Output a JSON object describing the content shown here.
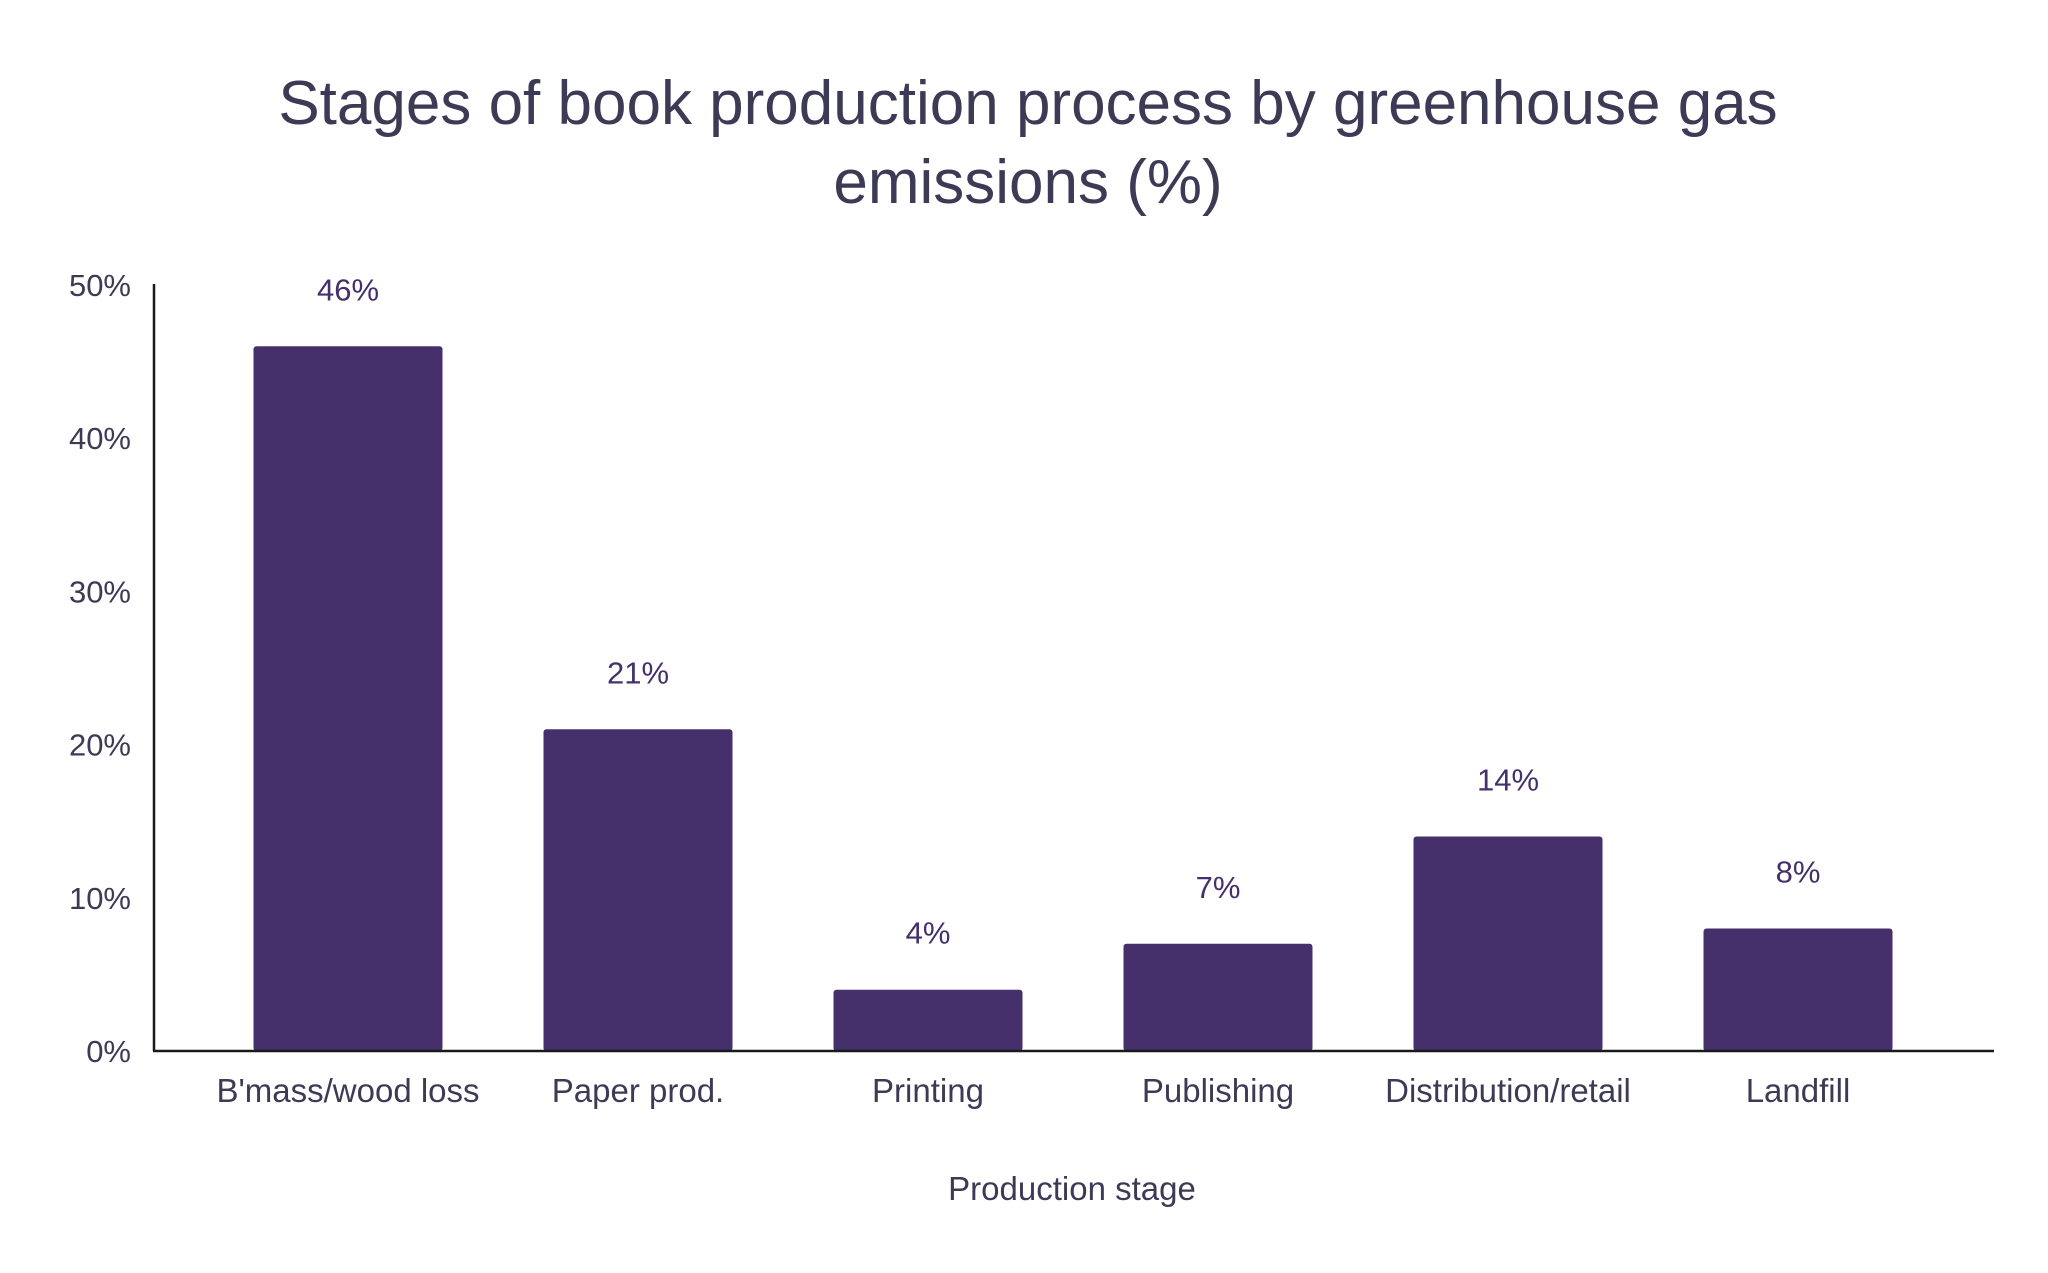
{
  "chart_data": {
    "type": "bar",
    "title": "Stages of book production process by greenhouse gas emissions (%)",
    "title_lines": [
      "Stages of book production process by greenhouse gas",
      "emissions (%)"
    ],
    "xlabel": "Production stage",
    "ylabel": "",
    "categories": [
      "B'mass/wood loss",
      "Paper prod.",
      "Printing",
      "Publishing",
      "Distribution/retail",
      "Landfill"
    ],
    "values": [
      46,
      21,
      4,
      7,
      14,
      8
    ],
    "data_labels": [
      "46%",
      "21%",
      "4%",
      "7%",
      "14%",
      "8%"
    ],
    "ylim": [
      0,
      50
    ],
    "yticks": [
      0,
      10,
      20,
      30,
      40,
      50
    ],
    "ytick_labels": [
      "0%",
      "10%",
      "20%",
      "30%",
      "40%",
      "50%"
    ],
    "grid": false,
    "legend": "none",
    "colors": {
      "bar": "#45306b",
      "text": "#3d3a55",
      "label": "#45306b",
      "axis": "#1a1a1a"
    }
  }
}
